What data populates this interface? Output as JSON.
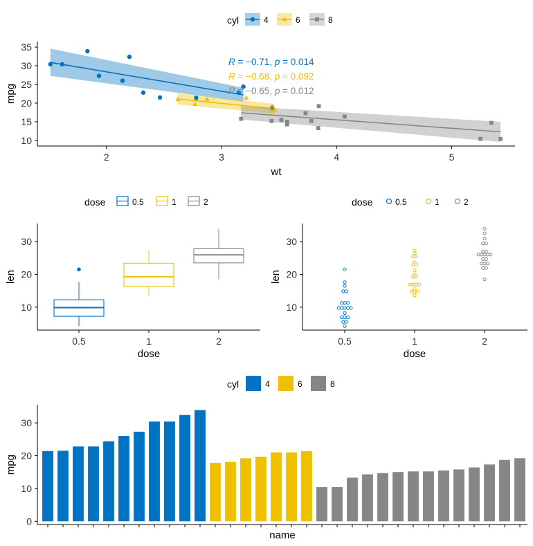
{
  "colors": {
    "c4": "#0073C2",
    "c6": "#EFC000",
    "c8": "#868686",
    "axis": "#000000"
  },
  "chart_data": [
    {
      "id": "scatter",
      "type": "scatter",
      "xlabel": "wt",
      "ylabel": "mpg",
      "xlim": [
        1.4,
        5.55
      ],
      "ylim": [
        8.5,
        36.5
      ],
      "xticks": [
        2,
        3,
        4,
        5
      ],
      "yticks": [
        10,
        15,
        20,
        25,
        30,
        35
      ],
      "legend": {
        "title": "cyl",
        "position": "top",
        "entries": [
          "4",
          "6",
          "8"
        ]
      },
      "series": [
        {
          "name": "4",
          "marker": "circle",
          "x": [
            2.32,
            3.19,
            3.15,
            2.2,
            1.615,
            1.835,
            2.465,
            1.935,
            2.14,
            1.513,
            2.78
          ],
          "y": [
            22.8,
            24.4,
            22.8,
            32.4,
            30.4,
            33.9,
            21.5,
            27.3,
            26.0,
            30.4,
            21.4
          ],
          "fit": {
            "x": [
              1.513,
              3.19
            ],
            "y": [
              30.9,
              22.2
            ],
            "ci_lower": [
              27.3,
              20.4
            ],
            "ci_upper": [
              34.6,
              24.1
            ]
          },
          "annotation": {
            "r": "−0.71",
            "p": "0.014"
          }
        },
        {
          "name": "6",
          "marker": "triangle",
          "x": [
            2.62,
            2.875,
            3.215,
            3.46,
            3.44,
            3.44,
            2.77
          ],
          "y": [
            21.0,
            21.0,
            21.4,
            18.1,
            19.2,
            17.8,
            19.7
          ],
          "fit": {
            "x": [
              2.62,
              3.46
            ],
            "y": [
              21.1,
              18.5
            ],
            "ci_lower": [
              19.6,
              17.2
            ],
            "ci_upper": [
              22.6,
              19.8
            ]
          },
          "annotation": {
            "r": "−0.68",
            "p": "0.092"
          }
        },
        {
          "name": "8",
          "marker": "square",
          "x": [
            3.44,
            3.57,
            4.07,
            3.73,
            3.78,
            5.25,
            5.424,
            5.345,
            3.52,
            3.435,
            3.84,
            3.845,
            3.17,
            3.57
          ],
          "y": [
            18.7,
            14.3,
            16.4,
            17.3,
            15.2,
            10.4,
            10.4,
            14.7,
            15.5,
            15.2,
            13.3,
            19.2,
            15.8,
            15.0
          ],
          "fit": {
            "x": [
              3.17,
              5.424
            ],
            "y": [
              17.4,
              12.3
            ],
            "ci_lower": [
              15.6,
              9.6
            ],
            "ci_upper": [
              19.2,
              15.0
            ]
          },
          "annotation": {
            "r": "−0.65",
            "p": "0.012"
          }
        }
      ]
    },
    {
      "id": "boxplot",
      "type": "box",
      "xlabel": "dose",
      "ylabel": "len",
      "categories": [
        "0.5",
        "1",
        "2"
      ],
      "ylim": [
        3,
        35.5
      ],
      "yticks": [
        10,
        20,
        30
      ],
      "legend": {
        "title": "dose",
        "position": "top",
        "entries": [
          "0.5",
          "1",
          "2"
        ]
      },
      "boxes": [
        {
          "name": "0.5",
          "min": 4.2,
          "q1": 7.2,
          "median": 9.85,
          "q3": 12.25,
          "max": 17.6,
          "outliers": [
            21.5
          ]
        },
        {
          "name": "1",
          "min": 13.6,
          "q1": 16.25,
          "median": 19.25,
          "q3": 23.4,
          "max": 27.3,
          "outliers": []
        },
        {
          "name": "2",
          "min": 18.5,
          "q1": 23.5,
          "median": 25.95,
          "q3": 27.8,
          "max": 33.9,
          "outliers": []
        }
      ]
    },
    {
      "id": "dotplot",
      "type": "scatter",
      "xlabel": "dose",
      "ylabel": "len",
      "categories": [
        "0.5",
        "1",
        "2"
      ],
      "ylim": [
        3,
        35.5
      ],
      "yticks": [
        10,
        20,
        30
      ],
      "legend": {
        "title": "dose",
        "position": "top",
        "entries": [
          "0.5",
          "1",
          "2"
        ]
      },
      "groups": [
        {
          "name": "0.5",
          "values": [
            4.2,
            11.5,
            7.3,
            5.8,
            6.4,
            10.0,
            11.2,
            11.2,
            5.2,
            7.0,
            15.2,
            21.5,
            17.6,
            9.7,
            14.5,
            10.0,
            8.2,
            9.4,
            16.5,
            9.7
          ]
        },
        {
          "name": "1",
          "values": [
            16.5,
            16.5,
            15.2,
            17.3,
            22.5,
            17.3,
            13.6,
            14.5,
            18.8,
            15.5,
            19.7,
            23.3,
            23.6,
            26.4,
            20.0,
            25.2,
            25.8,
            21.2,
            14.5,
            27.3
          ]
        },
        {
          "name": "2",
          "values": [
            23.6,
            18.5,
            33.9,
            25.5,
            26.4,
            32.5,
            26.7,
            21.5,
            23.3,
            29.5,
            25.5,
            26.4,
            22.4,
            24.5,
            24.8,
            30.9,
            26.4,
            27.3,
            29.4,
            23.0
          ]
        }
      ]
    },
    {
      "id": "barplot",
      "type": "bar",
      "xlabel": "name",
      "ylabel": "mpg",
      "ylim": [
        -1,
        35.5
      ],
      "yticks": [
        0,
        10,
        20,
        30
      ],
      "legend": {
        "title": "cyl",
        "position": "top",
        "entries": [
          "4",
          "6",
          "8"
        ]
      },
      "bars": [
        {
          "group": "4",
          "values": [
            21.4,
            21.5,
            22.8,
            22.8,
            24.4,
            26.0,
            27.3,
            30.4,
            30.4,
            32.4,
            33.9
          ]
        },
        {
          "group": "6",
          "values": [
            17.8,
            18.1,
            19.2,
            19.7,
            21.0,
            21.0,
            21.4
          ]
        },
        {
          "group": "8",
          "values": [
            10.4,
            10.4,
            13.3,
            14.3,
            14.7,
            15.0,
            15.2,
            15.2,
            15.5,
            15.8,
            16.4,
            17.3,
            18.7,
            19.2
          ]
        }
      ]
    }
  ]
}
